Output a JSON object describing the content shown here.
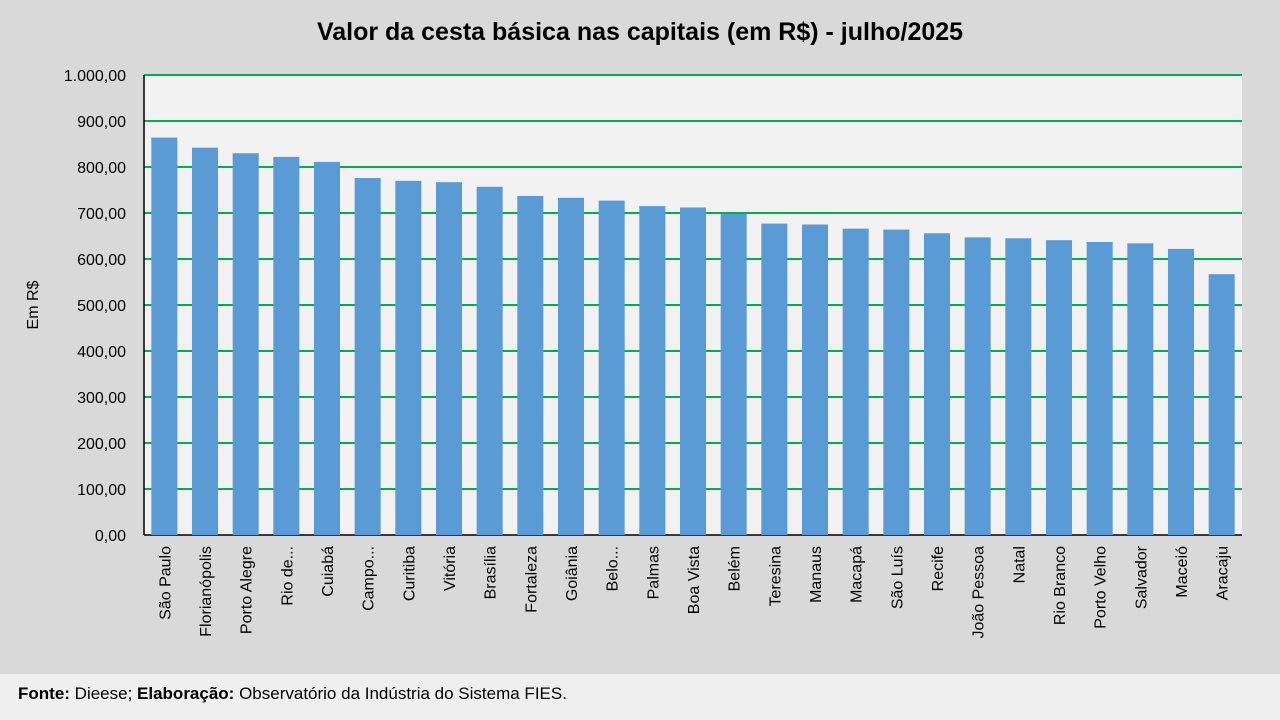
{
  "chart_data": {
    "type": "bar",
    "title": "Valor da cesta básica nas capitais (em R$) - julho/2025",
    "ylabel": "Em R$",
    "xlabel": "",
    "ylim": [
      0,
      1000
    ],
    "ytick_step": 100,
    "ytick_labels": [
      "0,00",
      "100,00",
      "200,00",
      "300,00",
      "400,00",
      "500,00",
      "600,00",
      "700,00",
      "800,00",
      "900,00",
      "1.000,00"
    ],
    "grid": true,
    "categories": [
      "São Paulo",
      "Florianópolis",
      "Porto Alegre",
      "Rio de...",
      "Cuiabá",
      "Campo...",
      "Curitiba",
      "Vitória",
      "Brasília",
      "Fortaleza",
      "Goiânia",
      "Belo...",
      "Palmas",
      "Boa Vista",
      "Belém",
      "Teresina",
      "Manaus",
      "Macapá",
      "São Luís",
      "Recife",
      "João Pessoa",
      "Natal",
      "Rio Branco",
      "Porto Velho",
      "Salvador",
      "Maceió",
      "Aracaju"
    ],
    "values": [
      864,
      842,
      830,
      822,
      811,
      776,
      770,
      767,
      757,
      737,
      733,
      727,
      715,
      712,
      698,
      677,
      675,
      666,
      664,
      656,
      647,
      645,
      641,
      637,
      634,
      622,
      567
    ],
    "colors": {
      "bar": "#5b9bd5",
      "grid": "#00b050",
      "plot_bg": "#f2f2f2",
      "page_bg": "#d9d9d9"
    }
  },
  "footer": {
    "fonte_label": "Fonte:",
    "fonte_text": " Dieese; ",
    "elab_label": "Elaboração:",
    "elab_text": " Observatório da Indústria do Sistema FIES."
  }
}
